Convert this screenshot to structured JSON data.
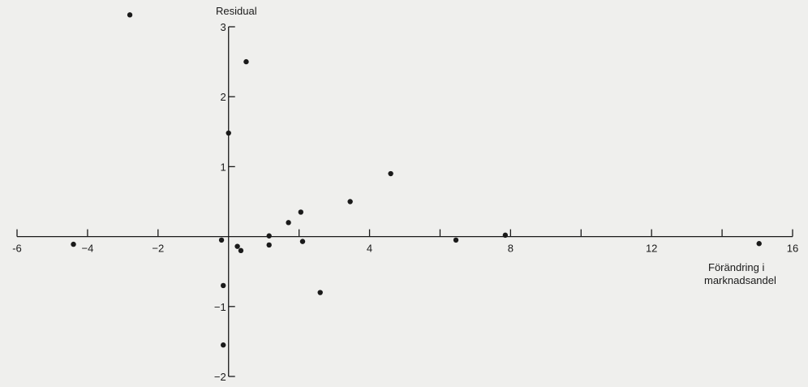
{
  "chart_data": {
    "type": "scatter",
    "title": "",
    "ylabel": "Residual",
    "xlabel_lines": [
      "Förändring i",
      "marknadsandel"
    ],
    "xlim": [
      -6,
      16
    ],
    "ylim": [
      -2,
      3
    ],
    "x_ticks": [
      -6,
      -4,
      -2,
      0,
      2,
      4,
      6,
      8,
      10,
      12,
      14,
      16
    ],
    "x_tick_labels": [
      {
        "x": -6,
        "label": "-6"
      },
      {
        "x": -4,
        "label": "−4"
      },
      {
        "x": -2,
        "label": "−2"
      },
      {
        "x": 4,
        "label": "4"
      },
      {
        "x": 8,
        "label": "8"
      },
      {
        "x": 12,
        "label": "12"
      },
      {
        "x": 16,
        "label": "16"
      }
    ],
    "y_ticks": [
      -2,
      -1,
      0,
      1,
      2,
      3
    ],
    "y_tick_labels": [
      {
        "y": 3,
        "label": "3"
      },
      {
        "y": 2,
        "label": "2"
      },
      {
        "y": 1,
        "label": "1"
      },
      {
        "y": -1,
        "label": "−1"
      },
      {
        "y": -2,
        "label": "−2"
      }
    ],
    "grid": false,
    "legend": "none",
    "points": [
      {
        "x": -4.4,
        "y": -0.11
      },
      {
        "x": -2.8,
        "y": 3.17
      },
      {
        "x": -0.2,
        "y": -0.05
      },
      {
        "x": -0.15,
        "y": -0.7
      },
      {
        "x": -0.15,
        "y": -1.55
      },
      {
        "x": 0.0,
        "y": 1.48
      },
      {
        "x": 0.25,
        "y": -0.14
      },
      {
        "x": 0.35,
        "y": -0.2
      },
      {
        "x": 0.5,
        "y": 2.5
      },
      {
        "x": 1.15,
        "y": 0.01
      },
      {
        "x": 1.15,
        "y": -0.12
      },
      {
        "x": 1.7,
        "y": 0.2
      },
      {
        "x": 2.05,
        "y": 0.35
      },
      {
        "x": 2.1,
        "y": -0.07
      },
      {
        "x": 2.6,
        "y": -0.8
      },
      {
        "x": 3.45,
        "y": 0.5
      },
      {
        "x": 4.6,
        "y": 0.9
      },
      {
        "x": 6.45,
        "y": -0.05
      },
      {
        "x": 7.85,
        "y": 0.02
      },
      {
        "x": 15.05,
        "y": -0.1
      }
    ]
  }
}
